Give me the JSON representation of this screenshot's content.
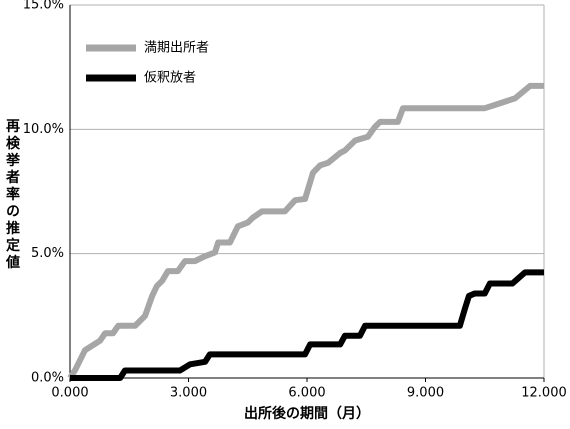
{
  "chart_data": {
    "type": "line",
    "xlabel": "出所後の期間（月）",
    "ylabel": "再検挙者率の推定値",
    "xlim": [
      0,
      12
    ],
    "ylim": [
      0,
      15
    ],
    "xticks": [
      {
        "value": 0,
        "label": "0.000"
      },
      {
        "value": 3,
        "label": "3.000"
      },
      {
        "value": 6,
        "label": "6.000"
      },
      {
        "value": 9,
        "label": "9.000"
      },
      {
        "value": 12,
        "label": "12.000"
      }
    ],
    "yticks": [
      {
        "value": 0,
        "label": "0.0%"
      },
      {
        "value": 5,
        "label": "5.0%"
      },
      {
        "value": 10,
        "label": "10.0%"
      },
      {
        "value": 15,
        "label": "15.0%"
      }
    ],
    "grid": true,
    "legend": "upper left",
    "series": [
      {
        "name": "満期出所者",
        "color": "#a6a6a6",
        "x": [
          0,
          0.13,
          0.38,
          0.76,
          0.89,
          1.09,
          1.22,
          1.65,
          1.9,
          2.08,
          2.2,
          2.33,
          2.48,
          2.73,
          2.91,
          3.16,
          3.42,
          3.67,
          3.75,
          4.05,
          4.25,
          4.5,
          4.63,
          4.86,
          5.44,
          5.7,
          5.95,
          6.15,
          6.33,
          6.53,
          6.84,
          6.96,
          7.22,
          7.54,
          7.72,
          7.85,
          8.3,
          8.43,
          10.5,
          10.89,
          11.27,
          11.65,
          12
        ],
        "values": [
          0,
          0.32,
          1.12,
          1.5,
          1.8,
          1.8,
          2.1,
          2.1,
          2.5,
          3.3,
          3.7,
          3.9,
          4.3,
          4.3,
          4.7,
          4.7,
          4.9,
          5.05,
          5.45,
          5.45,
          6.1,
          6.25,
          6.45,
          6.7,
          6.7,
          7.15,
          7.2,
          8.25,
          8.55,
          8.65,
          9.05,
          9.15,
          9.55,
          9.7,
          10.1,
          10.3,
          10.3,
          10.85,
          10.85,
          11.05,
          11.25,
          11.75,
          11.75
        ]
      },
      {
        "name": "仮釈放者",
        "color": "#000000",
        "x": [
          0,
          1.27,
          1.39,
          2.78,
          3.04,
          3.42,
          3.54,
          5.95,
          6.08,
          6.84,
          6.96,
          7.34,
          7.47,
          9.87,
          10.0,
          10.1,
          10.25,
          10.5,
          10.63,
          11.2,
          11.52,
          12
        ],
        "values": [
          0,
          0,
          0.3,
          0.3,
          0.55,
          0.65,
          0.95,
          0.95,
          1.35,
          1.35,
          1.7,
          1.7,
          2.1,
          2.1,
          2.8,
          3.3,
          3.4,
          3.4,
          3.8,
          3.8,
          4.25,
          4.25
        ]
      }
    ]
  }
}
